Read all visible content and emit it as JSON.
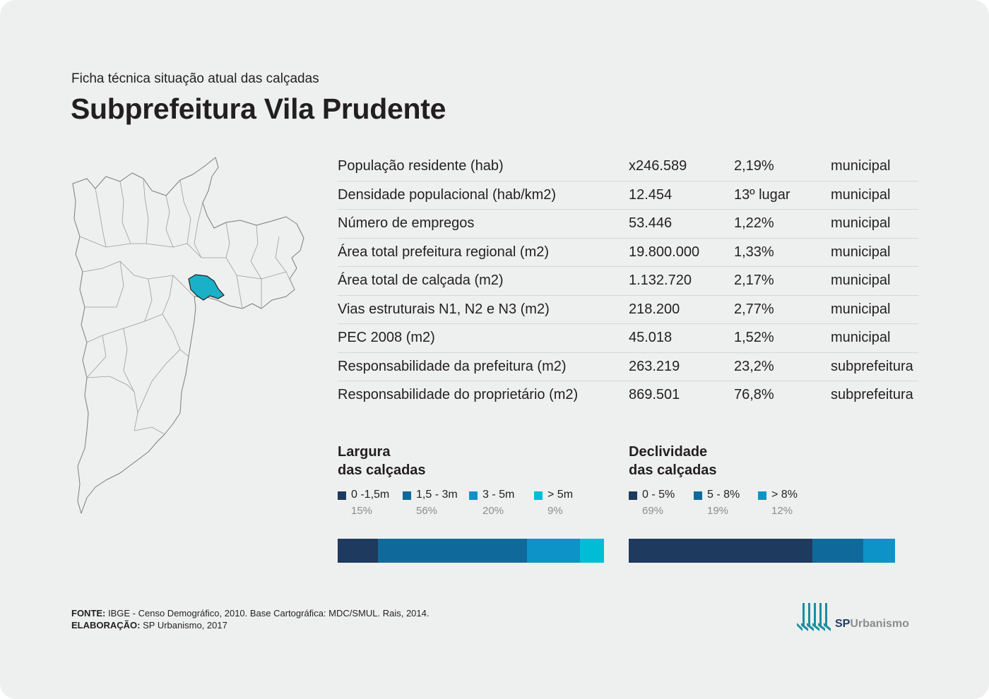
{
  "header": {
    "subtitle": "Ficha técnica situação atual das calçadas",
    "title": "Subprefeitura Vila Prudente"
  },
  "stats": [
    {
      "label": "População residente (hab)",
      "value": "x246.589",
      "pct": "2,19%",
      "scope": "municipal"
    },
    {
      "label": "Densidade populacional (hab/km2)",
      "value": "12.454",
      "pct": "13º lugar",
      "scope": "municipal"
    },
    {
      "label": "Número de empregos",
      "value": "53.446",
      "pct": "1,22%",
      "scope": "municipal"
    },
    {
      "label": "Área total prefeitura regional (m2)",
      "value": "19.800.000",
      "pct": "1,33%",
      "scope": "municipal"
    },
    {
      "label": "Área total de calçada (m2)",
      "value": "1.132.720",
      "pct": "2,17%",
      "scope": "municipal"
    },
    {
      "label": "Vias estruturais N1, N2 e N3 (m2)",
      "value": "218.200",
      "pct": "2,77%",
      "scope": "municipal"
    },
    {
      "label": "PEC 2008 (m2)",
      "value": "45.018",
      "pct": "1,52%",
      "scope": "municipal"
    },
    {
      "label": "Responsabilidade da prefeitura (m2)",
      "value": "263.219",
      "pct": "23,2%",
      "scope": "subprefeitura"
    },
    {
      "label": "Responsabilidade do proprietário (m2)",
      "value": "869.501",
      "pct": "76,8%",
      "scope": "subprefeitura"
    }
  ],
  "chart_data": [
    {
      "type": "bar",
      "title_line1": "Largura",
      "title_line2": "das calçadas",
      "categories": [
        "0 -1,5m",
        "1,5 - 3m",
        "3 - 5m",
        "> 5m"
      ],
      "values": [
        15,
        56,
        20,
        9
      ],
      "value_labels": [
        "15%",
        "56%",
        "20%",
        "9%"
      ],
      "colors": [
        "#1f3a5f",
        "#0f6a9b",
        "#0e93c8",
        "#00bdd6"
      ],
      "stacked": true
    },
    {
      "type": "bar",
      "title_line1": "Declividade",
      "title_line2": "das calçadas",
      "categories": [
        "0 - 5%",
        "5 - 8%",
        "> 8%"
      ],
      "values": [
        69,
        19,
        12
      ],
      "value_labels": [
        "69%",
        "19%",
        "12%"
      ],
      "colors": [
        "#1f3a5f",
        "#0f6a9b",
        "#0e93c8"
      ],
      "stacked": true
    }
  ],
  "map": {
    "highlight_color": "#1ab0c8",
    "outline_color": "#7a7c7e",
    "icon": "sao-paulo-map"
  },
  "footer": {
    "source_label": "FONTE:",
    "source_text": " IBGE - Censo Demográfico, 2010. Base Cartográfica: MDC/SMUL. Rais, 2014.",
    "credit_label": "ELABORAÇÃO:",
    "credit_text": " SP Urbanismo, 2017"
  },
  "logo": {
    "sp": "SP",
    "urbanismo": "Urbanismo"
  }
}
